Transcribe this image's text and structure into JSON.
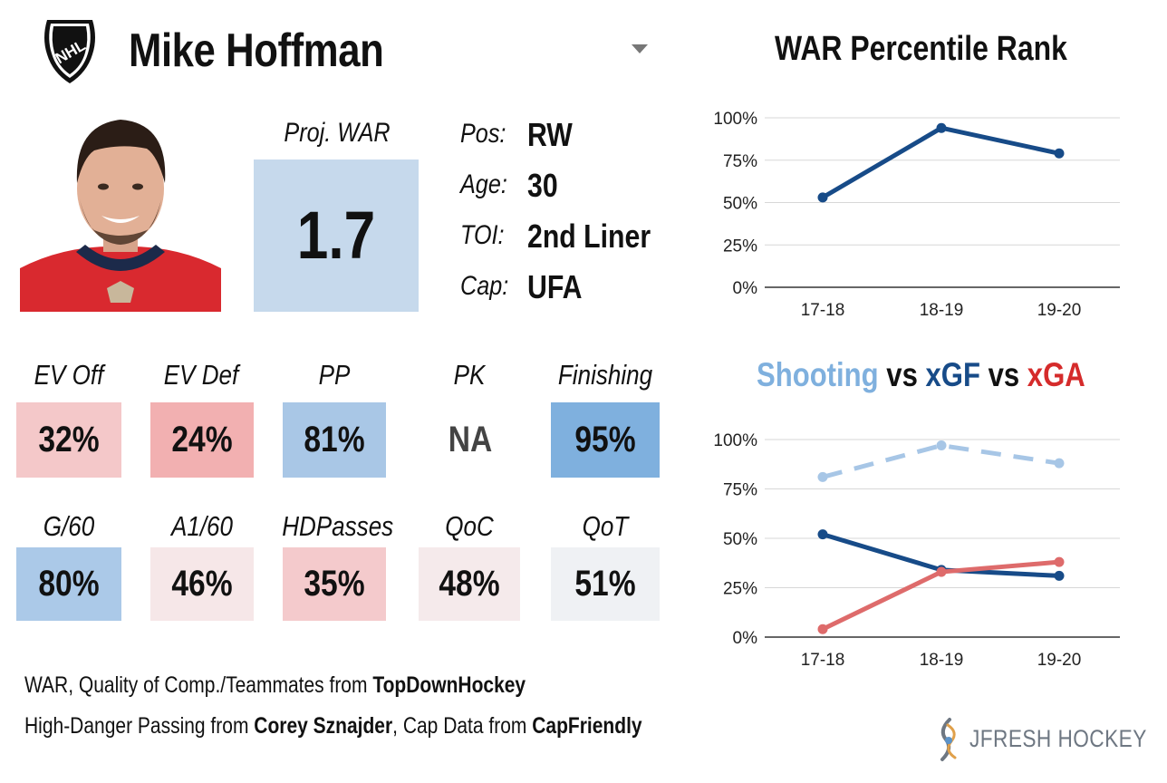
{
  "header": {
    "player_name": "Mike Hoffman",
    "logo_text": "NHL",
    "logo_icon": "nhl-shield-icon",
    "dropdown_icon": "chevron-down-icon"
  },
  "war": {
    "label": "Proj. WAR",
    "value": "1.7",
    "color": "#c6d9ec"
  },
  "info": [
    {
      "label": "Pos:",
      "value": "RW"
    },
    {
      "label": "Age:",
      "value": "30"
    },
    {
      "label": "TOI:",
      "value": "2nd Liner"
    },
    {
      "label": "Cap:",
      "value": "UFA"
    }
  ],
  "metrics_row1": [
    {
      "label": "EV Off",
      "value": "32%",
      "color": "#f4c8c9"
    },
    {
      "label": "EV Def",
      "value": "24%",
      "color": "#f2b0b1"
    },
    {
      "label": "PP",
      "value": "81%",
      "color": "#a9c7e6"
    },
    {
      "label": "PK",
      "value": "NA",
      "color": "#ffffff"
    },
    {
      "label": "Finishing",
      "value": "95%",
      "color": "#7fb0de"
    }
  ],
  "metrics_row2": [
    {
      "label": "G/60",
      "value": "80%",
      "color": "#abc9e8"
    },
    {
      "label": "A1/60",
      "value": "46%",
      "color": "#f6e7e8"
    },
    {
      "label": "HDPasses",
      "value": "35%",
      "color": "#f4cacc"
    },
    {
      "label": "QoC",
      "value": "48%",
      "color": "#f5eaeb"
    },
    {
      "label": "QoT",
      "value": "51%",
      "color": "#eff1f4"
    }
  ],
  "chart_data": [
    {
      "type": "line",
      "title": "WAR Percentile Rank",
      "categories": [
        "17-18",
        "18-19",
        "19-20"
      ],
      "y_ticks": [
        "0%",
        "25%",
        "50%",
        "75%",
        "100%"
      ],
      "ylim": [
        0,
        100
      ],
      "grid": true,
      "series": [
        {
          "values": [
            53,
            94,
            79
          ],
          "color": "#174b88",
          "dashed": false
        }
      ]
    },
    {
      "type": "line",
      "title_parts": [
        {
          "text": "Shooting",
          "color": "#7fb0de"
        },
        {
          "text": " vs ",
          "color": "#111111"
        },
        {
          "text": "xGF",
          "color": "#174b88"
        },
        {
          "text": " vs ",
          "color": "#111111"
        },
        {
          "text": "xGA",
          "color": "#d52b2b"
        }
      ],
      "categories": [
        "17-18",
        "18-19",
        "19-20"
      ],
      "y_ticks": [
        "0%",
        "25%",
        "50%",
        "75%",
        "100%"
      ],
      "ylim": [
        0,
        100
      ],
      "grid": true,
      "series": [
        {
          "name": "Shooting",
          "values": [
            81,
            97,
            88
          ],
          "color": "#a7c6e6",
          "dashed": true
        },
        {
          "name": "xGF",
          "values": [
            52,
            34,
            31
          ],
          "color": "#174b88",
          "dashed": false
        },
        {
          "name": "xGA",
          "values": [
            4,
            33,
            38
          ],
          "color": "#de6b6b",
          "dashed": false
        }
      ]
    }
  ],
  "credits": {
    "line1_prefix": "WAR, Quality of Comp./Teammates from ",
    "line1_source": "TopDownHockey",
    "line2_prefix": "High-Danger Passing from ",
    "line2_source1": "Corey Sznajder",
    "line2_mid": ", Cap Data from ",
    "line2_source2": "CapFriendly"
  },
  "brand": {
    "text": "JFRESH HOCKEY",
    "icon": "jfresh-logo-icon"
  }
}
